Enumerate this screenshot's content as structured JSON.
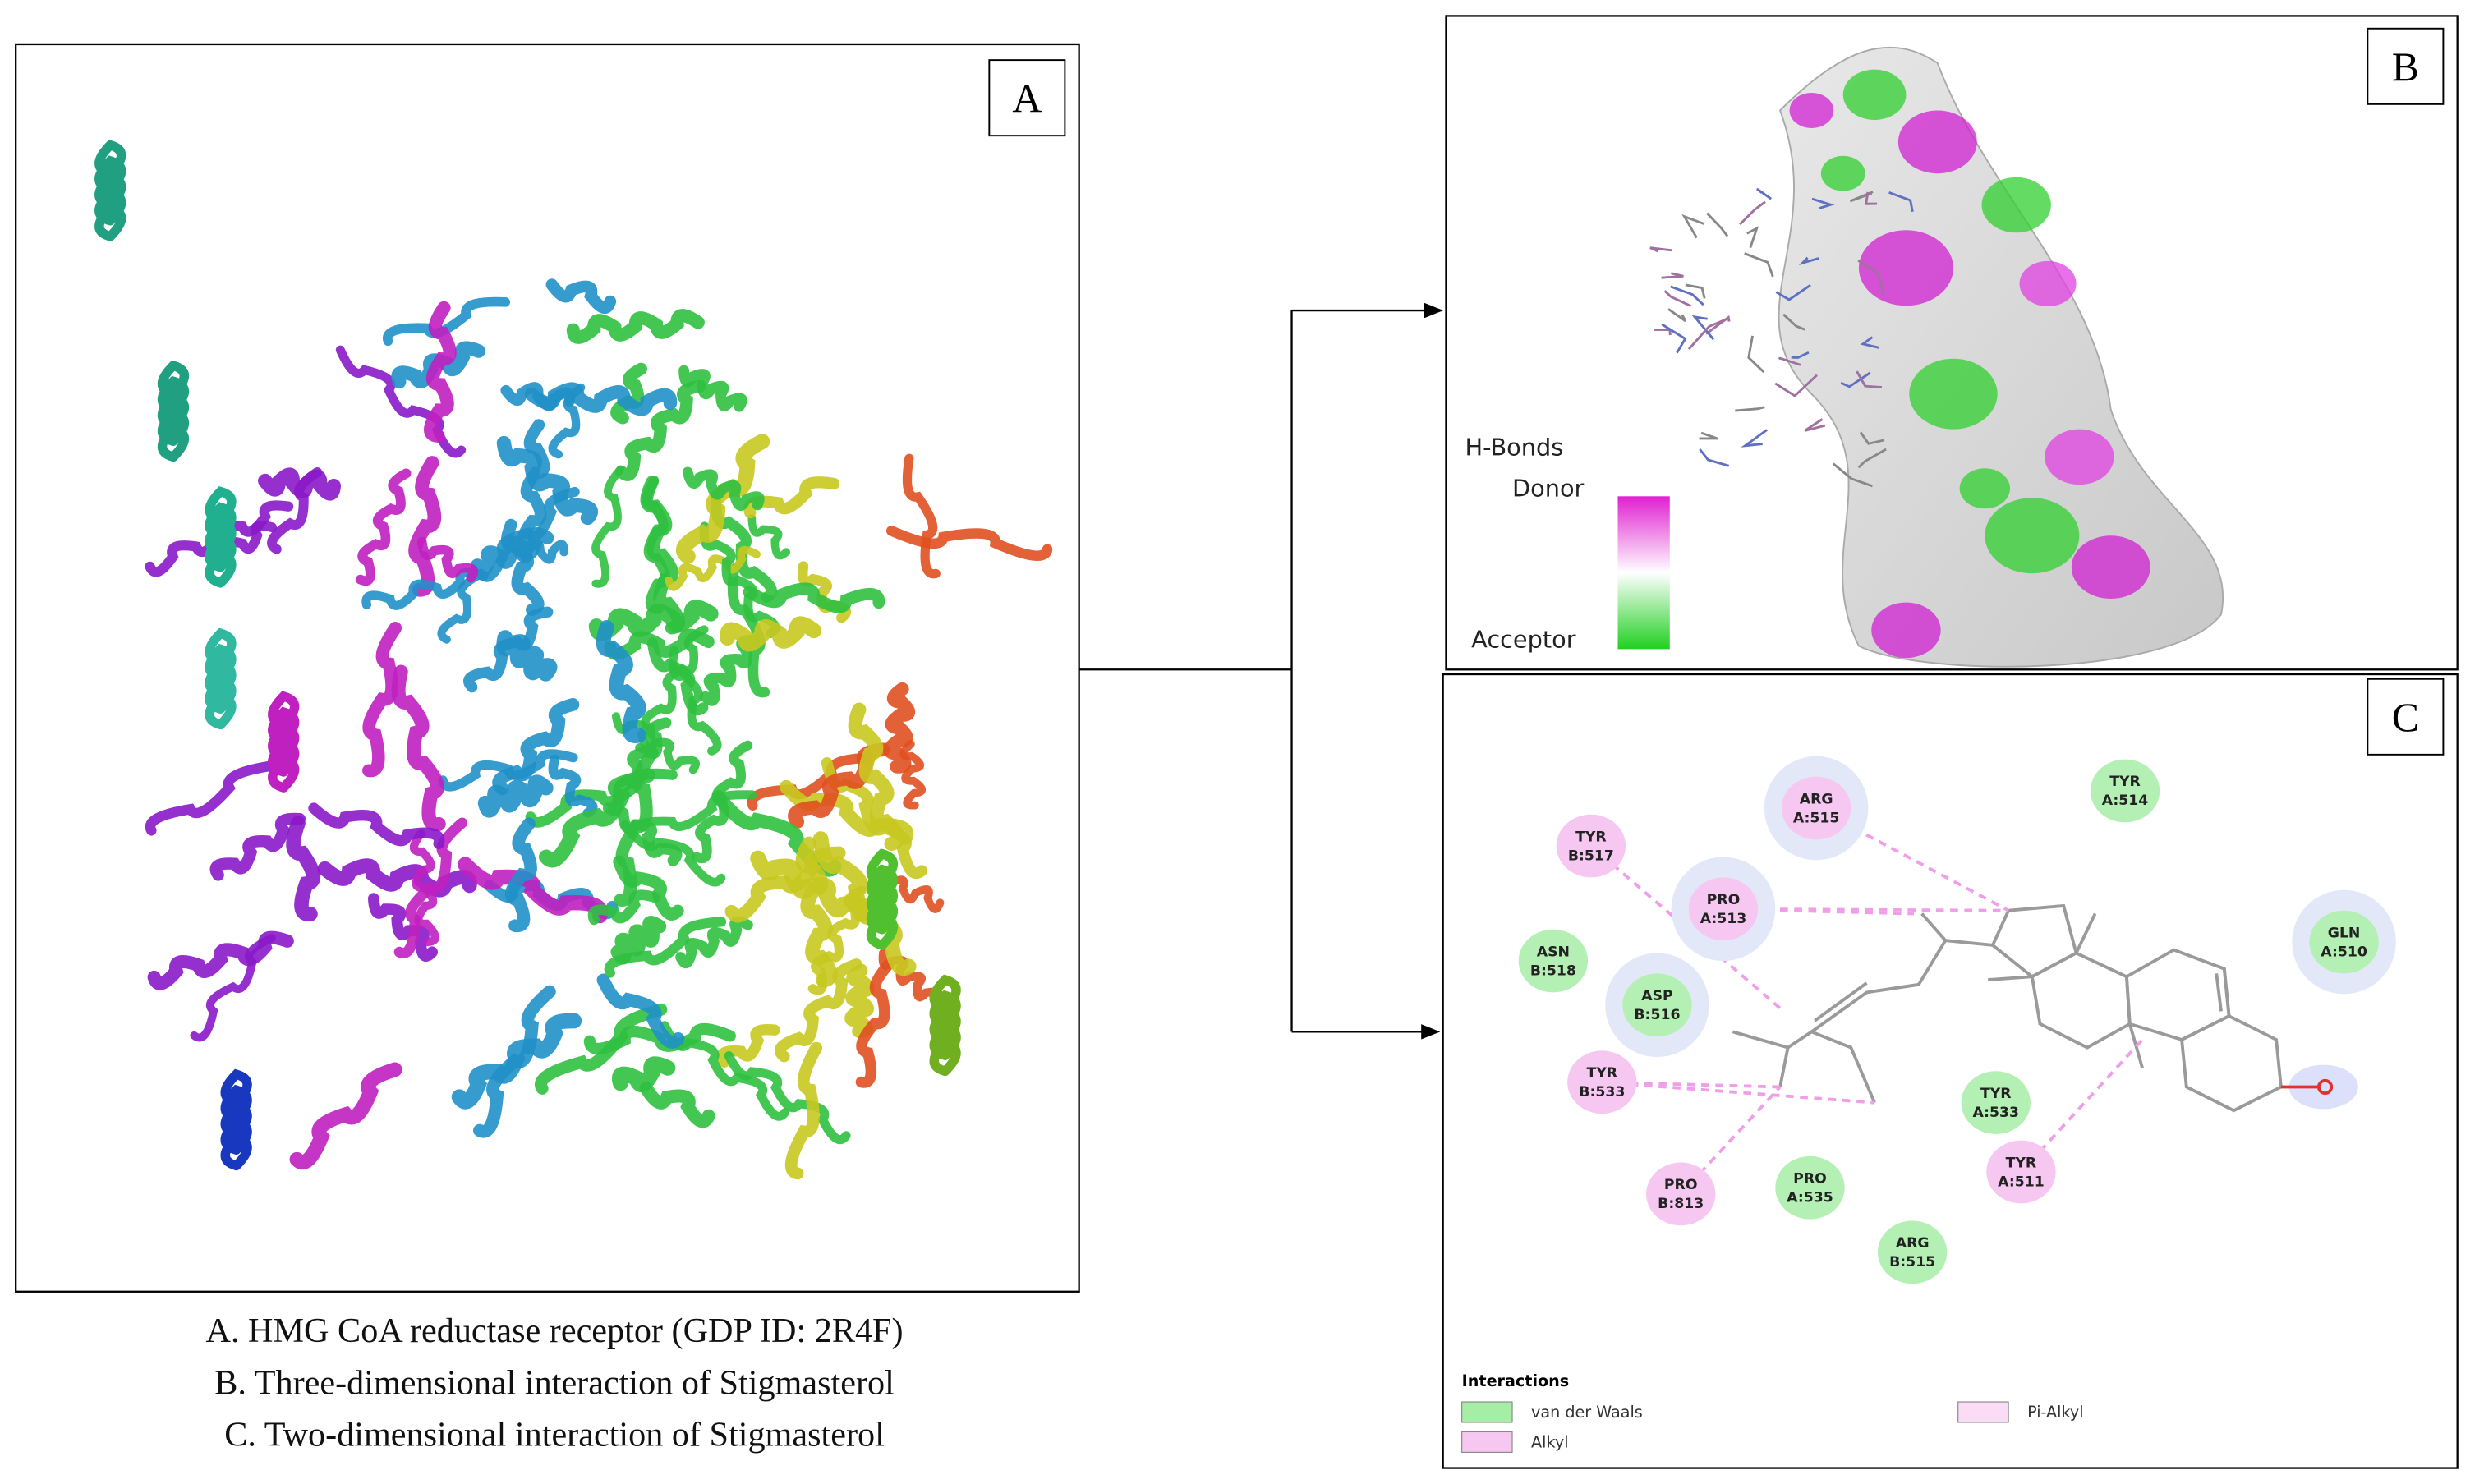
{
  "panels": {
    "A": {
      "label": "A"
    },
    "B": {
      "label": "B"
    },
    "C": {
      "label": "C"
    }
  },
  "captions": [
    "A.   HMG CoA reductase receptor (GDP ID: 2R4F)",
    "B.   Three-dimensional  interaction  of Stigmasterol",
    "C.   Two-dimensional  interaction  of Stigmasterol"
  ],
  "hbond_legend": {
    "title": "H-Bonds",
    "donor": "Donor",
    "acceptor": "Acceptor"
  },
  "residues": [
    {
      "name": "TYR",
      "chain": "B:517",
      "color": "#f6c8f1"
    },
    {
      "name": "ARG",
      "chain": "A:515",
      "color": "#f6c8f1"
    },
    {
      "name": "TYR",
      "chain": "A:514",
      "color": "#b4f0b4"
    },
    {
      "name": "PRO",
      "chain": "A:513",
      "color": "#f6c8f1"
    },
    {
      "name": "ASN",
      "chain": "B:518",
      "color": "#b4f0b4"
    },
    {
      "name": "ASP",
      "chain": "B:516",
      "color": "#b4f0b4"
    },
    {
      "name": "GLN",
      "chain": "A:510",
      "color": "#b4f0b4"
    },
    {
      "name": "TYR",
      "chain": "B:533",
      "color": "#f6c8f1"
    },
    {
      "name": "TYR",
      "chain": "A:533",
      "color": "#b4f0b4"
    },
    {
      "name": "TYR",
      "chain": "A:511",
      "color": "#f6c8f1"
    },
    {
      "name": "PRO",
      "chain": "B:813",
      "color": "#f6c8f1"
    },
    {
      "name": "PRO",
      "chain": "A:535",
      "color": "#b4f0b4"
    },
    {
      "name": "ARG",
      "chain": "B:515",
      "color": "#b4f0b4"
    }
  ],
  "interaction_legend": {
    "title": "Interactions",
    "items": [
      {
        "name": "van der Waals",
        "color": "#a6eea6"
      },
      {
        "name": "Alkyl",
        "color": "#f6c8f1"
      },
      {
        "name": "Pi-Alkyl",
        "color": "#fadcf6"
      }
    ]
  }
}
